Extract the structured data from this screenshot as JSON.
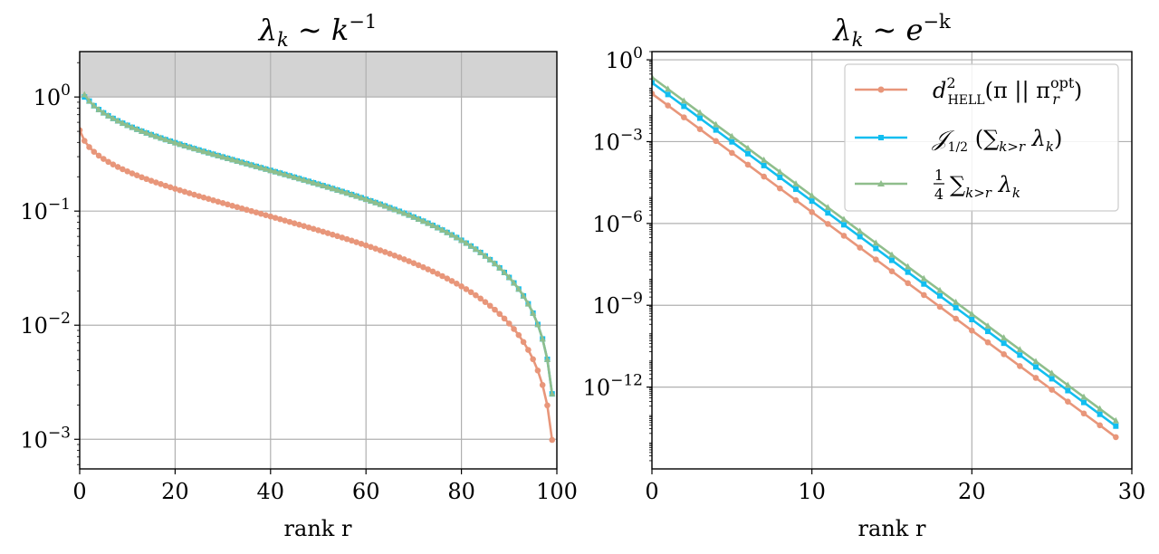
{
  "chart_data": [
    {
      "type": "line",
      "title": "λk ∼ k−1",
      "title_parts": {
        "base": "λ",
        "base_sub": "k",
        "mid": " ∼ k",
        "sup": "−1"
      },
      "xlabel": "rank r",
      "yscale": "log",
      "xlim": [
        0,
        100
      ],
      "ylim": [
        0.00055,
        2.5
      ],
      "xticks": [
        0,
        20,
        40,
        60,
        80,
        100
      ],
      "yticks": [
        {
          "value": 1,
          "label_base": "10",
          "label_exp": "0"
        },
        {
          "value": 0.1,
          "label_base": "10",
          "label_exp": "−1"
        },
        {
          "value": 0.01,
          "label_base": "10",
          "label_exp": "−2"
        },
        {
          "value": 0.001,
          "label_base": "10",
          "label_exp": "−3"
        }
      ],
      "grid": true,
      "shaded_region": {
        "y_from": 1,
        "y_to": 2.5,
        "color": "#d3d3d3"
      },
      "series_formula": "sum_{k>r} k^{-1} with k = 1..100",
      "series": [
        {
          "key": "hell",
          "color": "#e8967a",
          "marker": "circle",
          "scale": 0.0987,
          "clip_max": null,
          "r_start": 0
        },
        {
          "key": "jhalf",
          "color": "#12bef0",
          "marker": "square",
          "scale": 0.25,
          "clip_max": 1.0,
          "r_start": 1
        },
        {
          "key": "quarter",
          "color": "#8fbe8c",
          "marker": "triangle",
          "scale": 0.25,
          "clip_max": null,
          "r_start": 1
        }
      ]
    },
    {
      "type": "line",
      "title": "λk ∼ e−k",
      "title_parts": {
        "base": "λ",
        "base_sub": "k",
        "mid": " ∼ e",
        "sup": "−k"
      },
      "xlabel": "rank r",
      "yscale": "log",
      "xlim": [
        0,
        30
      ],
      "ylim": [
        1e-15,
        2
      ],
      "xticks": [
        0,
        10,
        20,
        30
      ],
      "yticks": [
        {
          "value": 1,
          "label_base": "10",
          "label_exp": "0"
        },
        {
          "value": 0.001,
          "label_base": "10",
          "label_exp": "−3"
        },
        {
          "value": 1e-06,
          "label_base": "10",
          "label_exp": "−6"
        },
        {
          "value": 1e-09,
          "label_base": "10",
          "label_exp": "−9"
        },
        {
          "value": 1e-12,
          "label_base": "10",
          "label_exp": "−12"
        }
      ],
      "grid": true,
      "series_formula": "sum_{k>r} e^{-k}, r = 0..29",
      "series": [
        {
          "key": "hell",
          "color": "#e8967a",
          "marker": "circle",
          "scale": 0.0987
        },
        {
          "key": "jhalf",
          "color": "#12bef0",
          "marker": "square",
          "scale": 0.25
        },
        {
          "key": "quarter",
          "color": "#8fbe8c",
          "marker": "triangle",
          "scale": 0.395
        }
      ],
      "legend": {
        "placement": "top-right",
        "entries": [
          {
            "key": "hell",
            "label": "d²HELL(π || πropt)",
            "parts": {
              "a": "d",
              "a_sup": "2",
              "a_sub": "HELL",
              "b": "(π || π",
              "b_sup": "opt",
              "b_sub": "r",
              "c": ")"
            }
          },
          {
            "key": "jhalf",
            "label": "J1/2 (∑k>r λk)",
            "parts": {
              "a": "𝒥",
              "a_sub": "1/2",
              "b": " (∑",
              "b_sub": "k>r",
              "c": " λ",
              "c_sub": "k",
              "d": ")"
            }
          },
          {
            "key": "quarter",
            "label": "1/4 ∑k>r λk",
            "parts": {
              "num": "1",
              "den": "4",
              "b": "∑",
              "b_sub": "k>r",
              "c": " λ",
              "c_sub": "k"
            }
          }
        ]
      }
    }
  ]
}
